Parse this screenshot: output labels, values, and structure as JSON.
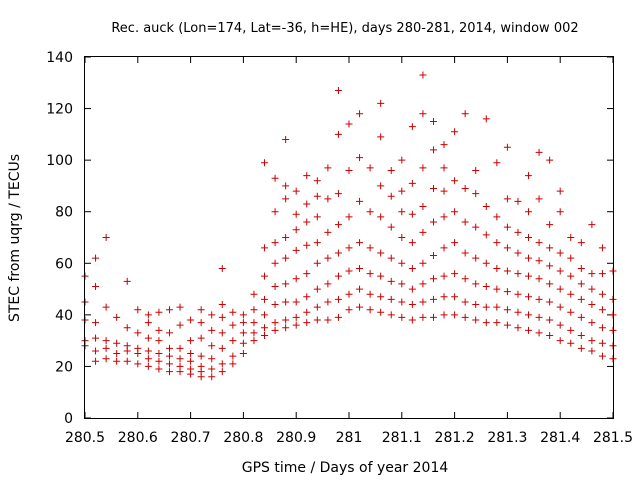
{
  "chart_data": {
    "type": "scatter",
    "title": "Rec. auck (Lon=174, Lat=-36, h=HE), days 280-281, 2014, window 002",
    "xlabel": "GPS time / Days of year 2014",
    "ylabel": "STEC from uqrg / TECUs",
    "xlim": [
      280.5,
      281.5
    ],
    "ylim": [
      0,
      140
    ],
    "xticks": [
      "280.5",
      "280.6",
      "280.7",
      "280.8",
      "280.9",
      "281",
      "281.1",
      "281.2",
      "281.3",
      "281.4",
      "281.5"
    ],
    "yticks": [
      "0",
      "20",
      "40",
      "60",
      "80",
      "100",
      "120",
      "140"
    ],
    "grid": false,
    "legend": "none",
    "marker": "plus",
    "color": "#cc0000",
    "points": [
      [
        280.5,
        28
      ],
      [
        280.5,
        30
      ],
      [
        280.5,
        38
      ],
      [
        280.5,
        45
      ],
      [
        280.5,
        55
      ],
      [
        280.52,
        22
      ],
      [
        280.52,
        26
      ],
      [
        280.52,
        31
      ],
      [
        280.52,
        37
      ],
      [
        280.52,
        51
      ],
      [
        280.52,
        62
      ],
      [
        280.54,
        23
      ],
      [
        280.54,
        27
      ],
      [
        280.54,
        30
      ],
      [
        280.54,
        43
      ],
      [
        280.54,
        70
      ],
      [
        280.56,
        22
      ],
      [
        280.56,
        25
      ],
      [
        280.56,
        29
      ],
      [
        280.56,
        39
      ],
      [
        280.58,
        22
      ],
      [
        280.58,
        26
      ],
      [
        280.58,
        28
      ],
      [
        280.58,
        35
      ],
      [
        280.58,
        53
      ],
      [
        280.6,
        21
      ],
      [
        280.6,
        25
      ],
      [
        280.6,
        27
      ],
      [
        280.6,
        33
      ],
      [
        280.6,
        42
      ],
      [
        280.62,
        20
      ],
      [
        280.62,
        23
      ],
      [
        280.62,
        26
      ],
      [
        280.62,
        31
      ],
      [
        280.62,
        37
      ],
      [
        280.62,
        40
      ],
      [
        280.64,
        19
      ],
      [
        280.64,
        22
      ],
      [
        280.64,
        25
      ],
      [
        280.64,
        30
      ],
      [
        280.64,
        34
      ],
      [
        280.64,
        41
      ],
      [
        280.66,
        18
      ],
      [
        280.66,
        21
      ],
      [
        280.66,
        24
      ],
      [
        280.66,
        27
      ],
      [
        280.66,
        33
      ],
      [
        280.66,
        42
      ],
      [
        280.68,
        18
      ],
      [
        280.68,
        20
      ],
      [
        280.68,
        23
      ],
      [
        280.68,
        27
      ],
      [
        280.68,
        36
      ],
      [
        280.68,
        43
      ],
      [
        280.7,
        17
      ],
      [
        280.7,
        19
      ],
      [
        280.7,
        22
      ],
      [
        280.7,
        25
      ],
      [
        280.7,
        30
      ],
      [
        280.7,
        38
      ],
      [
        280.72,
        16
      ],
      [
        280.72,
        18
      ],
      [
        280.72,
        20
      ],
      [
        280.72,
        24
      ],
      [
        280.72,
        31
      ],
      [
        280.72,
        37
      ],
      [
        280.72,
        42
      ],
      [
        280.74,
        16
      ],
      [
        280.74,
        19
      ],
      [
        280.74,
        23
      ],
      [
        280.74,
        28
      ],
      [
        280.74,
        34
      ],
      [
        280.74,
        40
      ],
      [
        280.76,
        18
      ],
      [
        280.76,
        21
      ],
      [
        280.76,
        27
      ],
      [
        280.76,
        33
      ],
      [
        280.76,
        39
      ],
      [
        280.76,
        44
      ],
      [
        280.76,
        58
      ],
      [
        280.78,
        21
      ],
      [
        280.78,
        24
      ],
      [
        280.78,
        30
      ],
      [
        280.78,
        36
      ],
      [
        280.78,
        41
      ],
      [
        280.8,
        25
      ],
      [
        280.8,
        29
      ],
      [
        280.8,
        33
      ],
      [
        280.8,
        37
      ],
      [
        280.8,
        40
      ],
      [
        280.82,
        30
      ],
      [
        280.82,
        33
      ],
      [
        280.82,
        37
      ],
      [
        280.82,
        42
      ],
      [
        280.82,
        48
      ],
      [
        280.84,
        32
      ],
      [
        280.84,
        35
      ],
      [
        280.84,
        40
      ],
      [
        280.84,
        46
      ],
      [
        280.84,
        55
      ],
      [
        280.84,
        66
      ],
      [
        280.84,
        99
      ],
      [
        280.86,
        34
      ],
      [
        280.86,
        37
      ],
      [
        280.86,
        44
      ],
      [
        280.86,
        51
      ],
      [
        280.86,
        60
      ],
      [
        280.86,
        68
      ],
      [
        280.86,
        80
      ],
      [
        280.86,
        93
      ],
      [
        280.88,
        35
      ],
      [
        280.88,
        38
      ],
      [
        280.88,
        45
      ],
      [
        280.88,
        52
      ],
      [
        280.88,
        62
      ],
      [
        280.88,
        70
      ],
      [
        280.88,
        85
      ],
      [
        280.88,
        90
      ],
      [
        280.88,
        108
      ],
      [
        280.9,
        36
      ],
      [
        280.9,
        39
      ],
      [
        280.9,
        45
      ],
      [
        280.9,
        54
      ],
      [
        280.9,
        65
      ],
      [
        280.9,
        73
      ],
      [
        280.9,
        79
      ],
      [
        280.9,
        88
      ],
      [
        280.92,
        37
      ],
      [
        280.92,
        41
      ],
      [
        280.92,
        47
      ],
      [
        280.92,
        56
      ],
      [
        280.92,
        67
      ],
      [
        280.92,
        76
      ],
      [
        280.92,
        83
      ],
      [
        280.92,
        94
      ],
      [
        280.94,
        38
      ],
      [
        280.94,
        43
      ],
      [
        280.94,
        50
      ],
      [
        280.94,
        60
      ],
      [
        280.94,
        68
      ],
      [
        280.94,
        78
      ],
      [
        280.94,
        86
      ],
      [
        280.94,
        92
      ],
      [
        280.96,
        38
      ],
      [
        280.96,
        45
      ],
      [
        280.96,
        52
      ],
      [
        280.96,
        62
      ],
      [
        280.96,
        72
      ],
      [
        280.96,
        85
      ],
      [
        280.96,
        97
      ],
      [
        280.98,
        39
      ],
      [
        280.98,
        46
      ],
      [
        280.98,
        55
      ],
      [
        280.98,
        64
      ],
      [
        280.98,
        75
      ],
      [
        280.98,
        87
      ],
      [
        280.98,
        110
      ],
      [
        280.98,
        127
      ],
      [
        281.0,
        42
      ],
      [
        281.0,
        48
      ],
      [
        281.0,
        57
      ],
      [
        281.0,
        66
      ],
      [
        281.0,
        78
      ],
      [
        281.0,
        96
      ],
      [
        281.0,
        114
      ],
      [
        281.02,
        43
      ],
      [
        281.02,
        50
      ],
      [
        281.02,
        58
      ],
      [
        281.02,
        68
      ],
      [
        281.02,
        84
      ],
      [
        281.02,
        101
      ],
      [
        281.02,
        118
      ],
      [
        281.04,
        42
      ],
      [
        281.04,
        48
      ],
      [
        281.04,
        56
      ],
      [
        281.04,
        66
      ],
      [
        281.04,
        80
      ],
      [
        281.04,
        97
      ],
      [
        281.06,
        41
      ],
      [
        281.06,
        47
      ],
      [
        281.06,
        55
      ],
      [
        281.06,
        64
      ],
      [
        281.06,
        78
      ],
      [
        281.06,
        90
      ],
      [
        281.06,
        109
      ],
      [
        281.06,
        122
      ],
      [
        281.08,
        40
      ],
      [
        281.08,
        46
      ],
      [
        281.08,
        53
      ],
      [
        281.08,
        62
      ],
      [
        281.08,
        74
      ],
      [
        281.08,
        86
      ],
      [
        281.08,
        96
      ],
      [
        281.1,
        39
      ],
      [
        281.1,
        45
      ],
      [
        281.1,
        52
      ],
      [
        281.1,
        60
      ],
      [
        281.1,
        70
      ],
      [
        281.1,
        80
      ],
      [
        281.1,
        88
      ],
      [
        281.1,
        100
      ],
      [
        281.12,
        38
      ],
      [
        281.12,
        44
      ],
      [
        281.12,
        50
      ],
      [
        281.12,
        58
      ],
      [
        281.12,
        68
      ],
      [
        281.12,
        79
      ],
      [
        281.12,
        91
      ],
      [
        281.12,
        113
      ],
      [
        281.14,
        39
      ],
      [
        281.14,
        45
      ],
      [
        281.14,
        52
      ],
      [
        281.14,
        60
      ],
      [
        281.14,
        72
      ],
      [
        281.14,
        82
      ],
      [
        281.14,
        97
      ],
      [
        281.14,
        118
      ],
      [
        281.14,
        133
      ],
      [
        281.16,
        39
      ],
      [
        281.16,
        46
      ],
      [
        281.16,
        54
      ],
      [
        281.16,
        63
      ],
      [
        281.16,
        76
      ],
      [
        281.16,
        89
      ],
      [
        281.16,
        104
      ],
      [
        281.16,
        115
      ],
      [
        281.18,
        40
      ],
      [
        281.18,
        47
      ],
      [
        281.18,
        55
      ],
      [
        281.18,
        66
      ],
      [
        281.18,
        78
      ],
      [
        281.18,
        88
      ],
      [
        281.18,
        97
      ],
      [
        281.18,
        106
      ],
      [
        281.2,
        40
      ],
      [
        281.2,
        47
      ],
      [
        281.2,
        56
      ],
      [
        281.2,
        68
      ],
      [
        281.2,
        80
      ],
      [
        281.2,
        92
      ],
      [
        281.2,
        111
      ],
      [
        281.22,
        39
      ],
      [
        281.22,
        45
      ],
      [
        281.22,
        54
      ],
      [
        281.22,
        64
      ],
      [
        281.22,
        76
      ],
      [
        281.22,
        89
      ],
      [
        281.22,
        118
      ],
      [
        281.24,
        38
      ],
      [
        281.24,
        44
      ],
      [
        281.24,
        52
      ],
      [
        281.24,
        62
      ],
      [
        281.24,
        74
      ],
      [
        281.24,
        87
      ],
      [
        281.24,
        96
      ],
      [
        281.26,
        37
      ],
      [
        281.26,
        43
      ],
      [
        281.26,
        51
      ],
      [
        281.26,
        60
      ],
      [
        281.26,
        71
      ],
      [
        281.26,
        82
      ],
      [
        281.26,
        116
      ],
      [
        281.28,
        37
      ],
      [
        281.28,
        43
      ],
      [
        281.28,
        50
      ],
      [
        281.28,
        58
      ],
      [
        281.28,
        68
      ],
      [
        281.28,
        78
      ],
      [
        281.28,
        99
      ],
      [
        281.3,
        36
      ],
      [
        281.3,
        42
      ],
      [
        281.3,
        49
      ],
      [
        281.3,
        57
      ],
      [
        281.3,
        66
      ],
      [
        281.3,
        74
      ],
      [
        281.3,
        85
      ],
      [
        281.3,
        105
      ],
      [
        281.32,
        35
      ],
      [
        281.32,
        41
      ],
      [
        281.32,
        48
      ],
      [
        281.32,
        56
      ],
      [
        281.32,
        64
      ],
      [
        281.32,
        72
      ],
      [
        281.32,
        84
      ],
      [
        281.34,
        34
      ],
      [
        281.34,
        40
      ],
      [
        281.34,
        47
      ],
      [
        281.34,
        55
      ],
      [
        281.34,
        62
      ],
      [
        281.34,
        70
      ],
      [
        281.34,
        80
      ],
      [
        281.34,
        94
      ],
      [
        281.36,
        33
      ],
      [
        281.36,
        39
      ],
      [
        281.36,
        46
      ],
      [
        281.36,
        54
      ],
      [
        281.36,
        61
      ],
      [
        281.36,
        68
      ],
      [
        281.36,
        85
      ],
      [
        281.36,
        103
      ],
      [
        281.38,
        32
      ],
      [
        281.38,
        38
      ],
      [
        281.38,
        45
      ],
      [
        281.38,
        52
      ],
      [
        281.38,
        59
      ],
      [
        281.38,
        66
      ],
      [
        281.38,
        75
      ],
      [
        281.38,
        100
      ],
      [
        281.4,
        30
      ],
      [
        281.4,
        36
      ],
      [
        281.4,
        43
      ],
      [
        281.4,
        50
      ],
      [
        281.4,
        57
      ],
      [
        281.4,
        64
      ],
      [
        281.4,
        80
      ],
      [
        281.4,
        88
      ],
      [
        281.42,
        29
      ],
      [
        281.42,
        34
      ],
      [
        281.42,
        41
      ],
      [
        281.42,
        48
      ],
      [
        281.42,
        55
      ],
      [
        281.42,
        62
      ],
      [
        281.42,
        70
      ],
      [
        281.44,
        27
      ],
      [
        281.44,
        32
      ],
      [
        281.44,
        39
      ],
      [
        281.44,
        46
      ],
      [
        281.44,
        52
      ],
      [
        281.44,
        58
      ],
      [
        281.44,
        68
      ],
      [
        281.46,
        26
      ],
      [
        281.46,
        30
      ],
      [
        281.46,
        37
      ],
      [
        281.46,
        44
      ],
      [
        281.46,
        50
      ],
      [
        281.46,
        56
      ],
      [
        281.46,
        75
      ],
      [
        281.48,
        24
      ],
      [
        281.48,
        29
      ],
      [
        281.48,
        35
      ],
      [
        281.48,
        42
      ],
      [
        281.48,
        48
      ],
      [
        281.48,
        56
      ],
      [
        281.48,
        66
      ],
      [
        281.5,
        23
      ],
      [
        281.5,
        28
      ],
      [
        281.5,
        34
      ],
      [
        281.5,
        40
      ],
      [
        281.5,
        46
      ],
      [
        281.5,
        57
      ]
    ]
  }
}
